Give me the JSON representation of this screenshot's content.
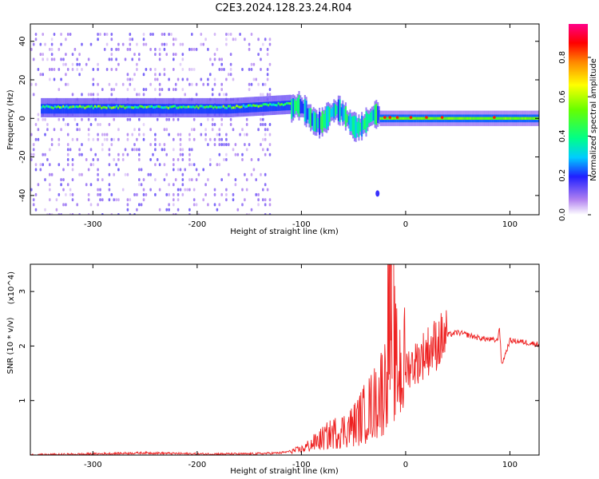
{
  "title": "C2E3.2024.128.23.24.R04",
  "chart_data": [
    {
      "type": "heatmap",
      "xlabel": "Height of straight line (km)",
      "ylabel": "Frequency (Hz)",
      "xlim": [
        -360,
        128
      ],
      "ylim": [
        -50,
        49
      ],
      "xticks": [
        -300,
        -200,
        -100,
        0,
        100
      ],
      "yticks": [
        -40,
        -20,
        0,
        20,
        40
      ],
      "colorbar": {
        "label": "Normalized spectral amplitude",
        "range": [
          0,
          0.97
        ],
        "ticks": [
          0.0,
          0.2,
          0.4,
          0.6,
          0.8
        ]
      },
      "features": [
        {
          "description": "main signal band",
          "x_range": [
            -350,
            128
          ],
          "frequency_center_hz": 4,
          "frequency_halfwidth_hz": 3,
          "amplitude": [
            0.3,
            0.6
          ]
        },
        {
          "description": "noise speckle region",
          "x_range": [
            -360,
            -130
          ],
          "frequency_range_hz": [
            -50,
            45
          ],
          "amplitude": [
            0.0,
            0.2
          ]
        },
        {
          "description": "spread feature",
          "x_range": [
            -110,
            -25
          ],
          "frequency_range_hz": [
            -12,
            15
          ],
          "amplitude": [
            0.2,
            0.5
          ]
        },
        {
          "description": "stable line with red peaks",
          "x_range": [
            -25,
            128
          ],
          "frequency_center_hz": 0,
          "amplitude": [
            0.5,
            0.9
          ]
        }
      ],
      "grid": false
    },
    {
      "type": "line",
      "xlabel": "Height of straight line (km)",
      "ylabel": "SNR (10 * v/v)",
      "y_multiplier": "(x10^4)",
      "xlim": [
        -360,
        128
      ],
      "ylim": [
        0,
        3.5
      ],
      "xticks": [
        -300,
        -200,
        -100,
        0,
        100
      ],
      "yticks": [
        1,
        2,
        3
      ],
      "series": [
        {
          "color": "#ee2222",
          "x": [
            -360,
            -300,
            -250,
            -200,
            -150,
            -120,
            -100,
            -90,
            -80,
            -70,
            -60,
            -50,
            -40,
            -30,
            -20,
            -14,
            -10,
            0,
            10,
            20,
            30,
            40,
            50,
            60,
            70,
            80,
            88,
            90,
            92,
            100,
            110,
            128
          ],
          "y": [
            0.0,
            0.02,
            0.04,
            0.02,
            0.02,
            0.04,
            0.1,
            0.2,
            0.3,
            0.4,
            0.45,
            0.55,
            0.75,
            0.95,
            1.3,
            3.45,
            1.6,
            1.6,
            1.7,
            1.9,
            2.05,
            2.2,
            2.25,
            2.2,
            2.15,
            2.12,
            2.1,
            2.35,
            1.65,
            2.1,
            2.08,
            2.03
          ]
        }
      ],
      "grid": false
    }
  ]
}
